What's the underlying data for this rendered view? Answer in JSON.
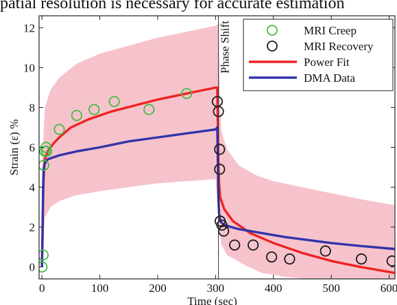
{
  "header": {
    "caption": "patial resolution is necessary for accurate estimation"
  },
  "chart_data": {
    "type": "line",
    "title": "",
    "xlabel": "Time (sec)",
    "ylabel": "Strain (ε) %",
    "xlim": [
      -5,
      610
    ],
    "ylim": [
      -0.6,
      12.6
    ],
    "xticks": [
      0,
      100,
      200,
      300,
      400,
      500,
      600
    ],
    "xtick_labels": [
      "0",
      "100",
      "200",
      "300",
      "400",
      "500",
      "600"
    ],
    "yticks": [
      0,
      2,
      4,
      6,
      8,
      10,
      12
    ],
    "ytick_labels": [
      "0",
      "2",
      "4",
      "6",
      "8",
      "10",
      "12"
    ],
    "grid": false,
    "legend_position": "top-right",
    "annotation": {
      "text": "Phase Shift",
      "x": 305
    },
    "band": {
      "name": "",
      "color": "#f6c3cc",
      "upper": [
        [
          0,
          5
        ],
        [
          5,
          8
        ],
        [
          15,
          8.9
        ],
        [
          30,
          9.5
        ],
        [
          60,
          10.2
        ],
        [
          100,
          10.7
        ],
        [
          150,
          11.1
        ],
        [
          200,
          11.5
        ],
        [
          250,
          11.8
        ],
        [
          300,
          12.1
        ],
        [
          305,
          12.2
        ],
        [
          307,
          9.2
        ],
        [
          310,
          6.8
        ],
        [
          320,
          5.9
        ],
        [
          340,
          5.1
        ],
        [
          370,
          4.6
        ],
        [
          400,
          4.3
        ],
        [
          450,
          4.0
        ],
        [
          500,
          3.7
        ],
        [
          550,
          3.4
        ],
        [
          610,
          3.1
        ]
      ],
      "lower": [
        [
          0,
          0
        ],
        [
          5,
          2.5
        ],
        [
          15,
          3.0
        ],
        [
          30,
          3.3
        ],
        [
          60,
          3.6
        ],
        [
          100,
          3.8
        ],
        [
          150,
          4.0
        ],
        [
          200,
          4.2
        ],
        [
          250,
          4.3
        ],
        [
          300,
          4.4
        ],
        [
          305,
          2.4
        ],
        [
          310,
          1.1
        ],
        [
          320,
          0.6
        ],
        [
          350,
          0.1
        ],
        [
          380,
          -0.3
        ],
        [
          420,
          -0.5
        ],
        [
          460,
          -0.6
        ],
        [
          610,
          -0.6
        ]
      ]
    },
    "series": [
      {
        "name": "MRI Creep",
        "kind": "marker",
        "color": "#44bb44",
        "points": [
          [
            0,
            0
          ],
          [
            2,
            0.6
          ],
          [
            3,
            5.1
          ],
          [
            5,
            5.8
          ],
          [
            7,
            6.0
          ],
          [
            8,
            5.8
          ],
          [
            30,
            6.9
          ],
          [
            60,
            7.6
          ],
          [
            90,
            7.9
          ],
          [
            125,
            8.3
          ],
          [
            185,
            7.9
          ],
          [
            250,
            8.7
          ]
        ]
      },
      {
        "name": "MRI Recovery",
        "kind": "marker",
        "color": "#1a1a1a",
        "points": [
          [
            303,
            8.3
          ],
          [
            305,
            7.8
          ],
          [
            307,
            5.9
          ],
          [
            307,
            4.9
          ],
          [
            308,
            2.3
          ],
          [
            311,
            2.1
          ],
          [
            314,
            1.8
          ],
          [
            333,
            1.1
          ],
          [
            365,
            1.1
          ],
          [
            397,
            0.5
          ],
          [
            428,
            0.4
          ],
          [
            490,
            0.8
          ],
          [
            552,
            0.4
          ],
          [
            605,
            0.3
          ]
        ]
      },
      {
        "name": "Power Fit",
        "kind": "line",
        "color": "#ee2222",
        "points": [
          [
            0,
            0
          ],
          [
            1,
            1.5
          ],
          [
            2,
            3.5
          ],
          [
            3,
            4.6
          ],
          [
            5,
            5.4
          ],
          [
            10,
            5.8
          ],
          [
            20,
            6.2
          ],
          [
            30,
            6.5
          ],
          [
            50,
            7.0
          ],
          [
            80,
            7.4
          ],
          [
            120,
            7.8
          ],
          [
            160,
            8.1
          ],
          [
            200,
            8.4
          ],
          [
            250,
            8.7
          ],
          [
            300,
            9.0
          ],
          [
            303,
            9.0
          ],
          [
            305,
            5.0
          ],
          [
            306,
            4.2
          ],
          [
            308,
            3.5
          ],
          [
            315,
            2.9
          ],
          [
            330,
            2.3
          ],
          [
            360,
            1.7
          ],
          [
            400,
            1.2
          ],
          [
            450,
            0.7
          ],
          [
            500,
            0.3
          ],
          [
            550,
            0.0
          ],
          [
            610,
            -0.3
          ]
        ]
      },
      {
        "name": "DMA Data",
        "kind": "line",
        "color": "#3333aa",
        "points": [
          [
            0,
            0
          ],
          [
            1,
            2.0
          ],
          [
            2,
            4.0
          ],
          [
            3,
            4.9
          ],
          [
            5,
            5.2
          ],
          [
            10,
            5.4
          ],
          [
            30,
            5.6
          ],
          [
            60,
            5.8
          ],
          [
            100,
            6.0
          ],
          [
            150,
            6.3
          ],
          [
            200,
            6.5
          ],
          [
            250,
            6.7
          ],
          [
            300,
            6.9
          ],
          [
            303,
            7.0
          ],
          [
            305,
            3.5
          ],
          [
            306,
            2.7
          ],
          [
            308,
            2.3
          ],
          [
            315,
            2.1
          ],
          [
            340,
            1.9
          ],
          [
            380,
            1.7
          ],
          [
            420,
            1.5
          ],
          [
            460,
            1.35
          ],
          [
            500,
            1.2
          ],
          [
            550,
            1.05
          ],
          [
            610,
            0.9
          ]
        ]
      }
    ]
  }
}
